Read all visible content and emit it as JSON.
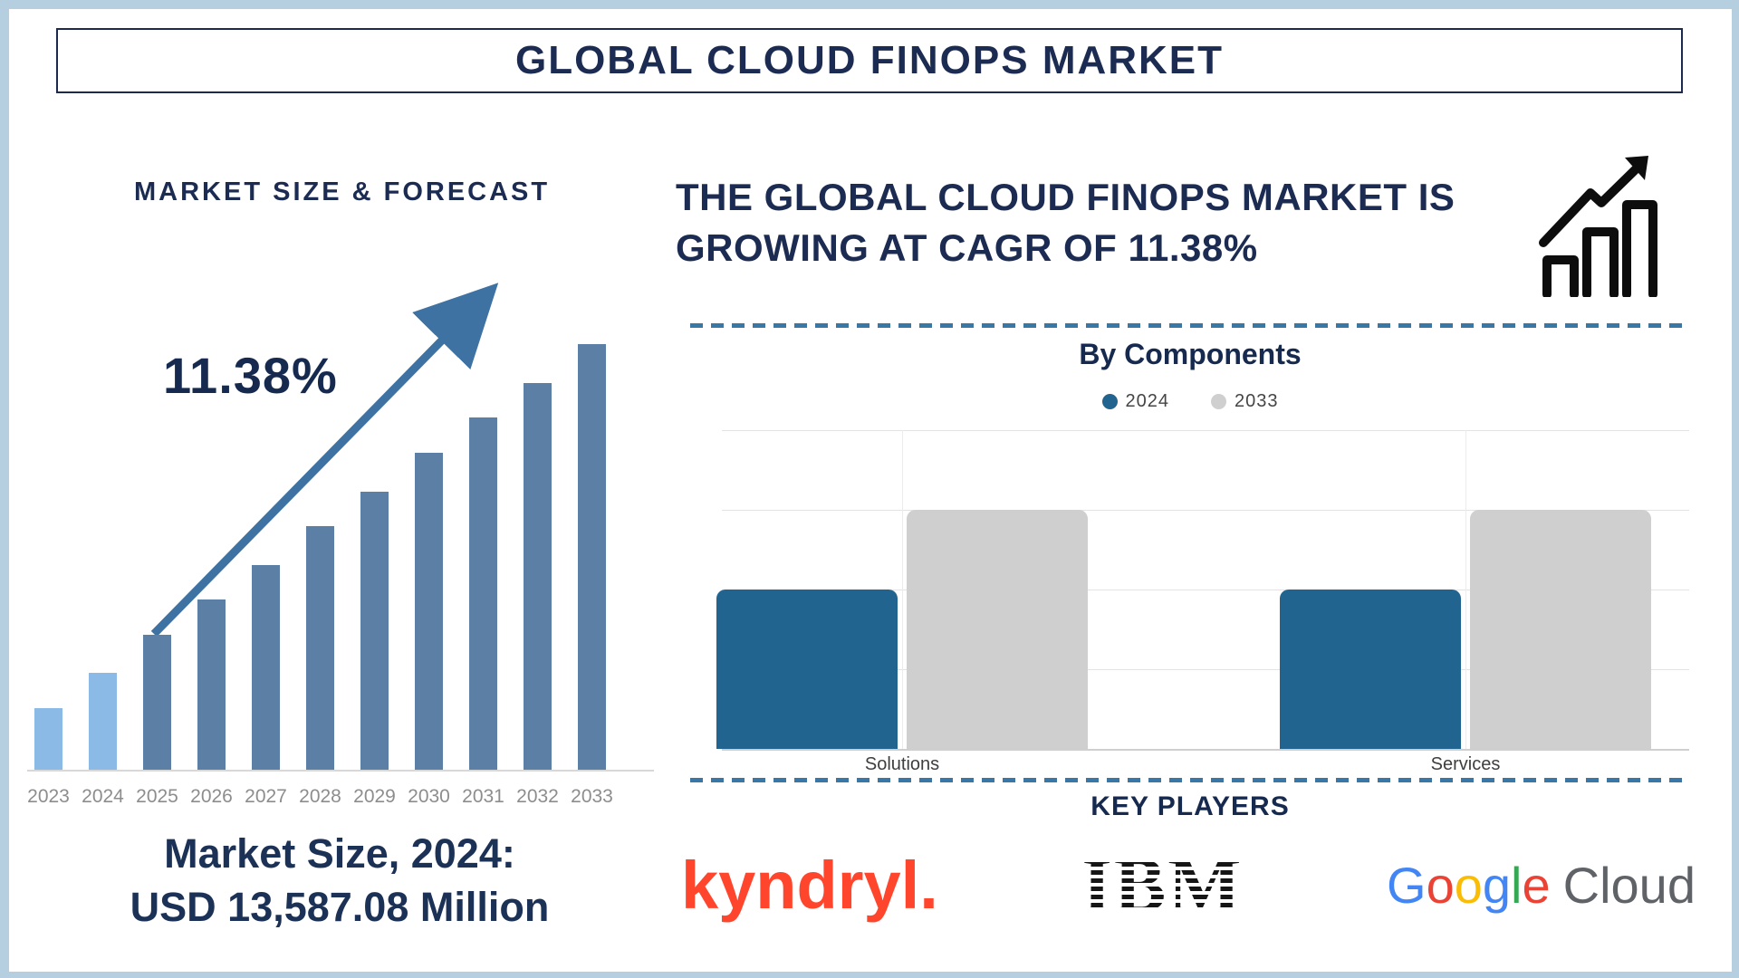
{
  "page": {
    "title": "GLOBAL CLOUD FINOPS MARKET"
  },
  "left_panel": {
    "heading": "MARKET SIZE & FORECAST",
    "cagr_label": "11.38%",
    "market_size_line1": "Market Size, 2024:",
    "market_size_line2": "USD 13,587.08 Million"
  },
  "right_panel": {
    "headline_line1": "THE GLOBAL CLOUD FINOPS MARKET IS",
    "headline_line2": "GROWING AT CAGR OF 11.38%",
    "by_components_title": "By Components",
    "key_players_title": "KEY PLAYERS"
  },
  "key_players": {
    "kyndryl": "kyndryl.",
    "ibm": "IBM",
    "google": {
      "letters": [
        {
          "ch": "G",
          "color": "#4285F4"
        },
        {
          "ch": "o",
          "color": "#EA4335"
        },
        {
          "ch": "o",
          "color": "#FBBC05"
        },
        {
          "ch": "g",
          "color": "#4285F4"
        },
        {
          "ch": "l",
          "color": "#34A853"
        },
        {
          "ch": "e",
          "color": "#EA4335"
        }
      ],
      "cloud_text": "Cloud",
      "cloud_color": "#5f6368"
    }
  },
  "colors": {
    "navy_text": "#1b2b52",
    "frame_blue": "#b5cee0",
    "arrow_blue": "#3e72a2",
    "dashed_line_blue": "#3877a6",
    "bar_light_blue": "#8cbae6",
    "bar_slate_blue": "#5b7fa5",
    "bar_2024_blue": "#20648f",
    "bar_2033_gray": "#cfcfcf",
    "kyndryl_red": "#ff462d",
    "year_label_gray": "#8d8d8d"
  },
  "chart_data": [
    {
      "type": "bar",
      "title": "MARKET SIZE & FORECAST",
      "categories": [
        "2023",
        "2024",
        "2025",
        "2026",
        "2027",
        "2028",
        "2029",
        "2030",
        "2031",
        "2032",
        "2033"
      ],
      "values_relative": [
        1.6,
        2.5,
        3.5,
        4.4,
        5.3,
        6.3,
        7.2,
        8.2,
        9.1,
        10.0,
        11.0
      ],
      "value_axis_shown": false,
      "annotations": [
        "11.38%",
        "Market Size, 2024: USD 13,587.08 Million"
      ],
      "actual_years_count": 2,
      "bar_color_actual": "#8cbae6",
      "bar_color_forecast": "#5b7fa5",
      "trend_arrow": true,
      "xlabel": "",
      "ylabel": ""
    },
    {
      "type": "bar",
      "title": "By Components",
      "categories": [
        "Solutions",
        "Services"
      ],
      "series": [
        {
          "name": "2024",
          "color": "#20648f",
          "values_grid_units": [
            2,
            2
          ]
        },
        {
          "name": "2033",
          "color": "#cfcfcf",
          "values_grid_units": [
            3,
            3
          ]
        }
      ],
      "ylim": [
        0,
        4
      ],
      "grid": true,
      "legend_position": "top",
      "xlabel": "",
      "ylabel": ""
    }
  ]
}
